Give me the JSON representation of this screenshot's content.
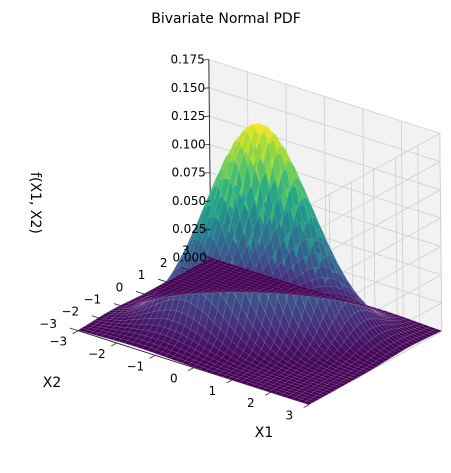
{
  "chart_data": {
    "type": "surface",
    "title": "Bivariate Normal PDF",
    "xlabel": "X1",
    "ylabel": "X2",
    "zlabel": "f(X1, X2)",
    "xlim": [
      -3,
      3
    ],
    "ylim": [
      -3,
      3
    ],
    "zlim": [
      0,
      0.175
    ],
    "x_ticks": [
      "−3",
      "−2",
      "−1",
      "0",
      "1",
      "2",
      "3"
    ],
    "y_ticks": [
      "−3",
      "−2",
      "−1",
      "0",
      "1",
      "2",
      "3"
    ],
    "z_ticks": [
      "0.000",
      "0.025",
      "0.050",
      "0.075",
      "0.100",
      "0.125",
      "0.150",
      "0.175"
    ],
    "colormap": "viridis",
    "grid": true,
    "surface": {
      "function": "bivariate normal density",
      "mean": [
        0,
        0
      ],
      "sigma": [
        1,
        1
      ],
      "rho": 0.5,
      "peak": 0.1838
    }
  }
}
